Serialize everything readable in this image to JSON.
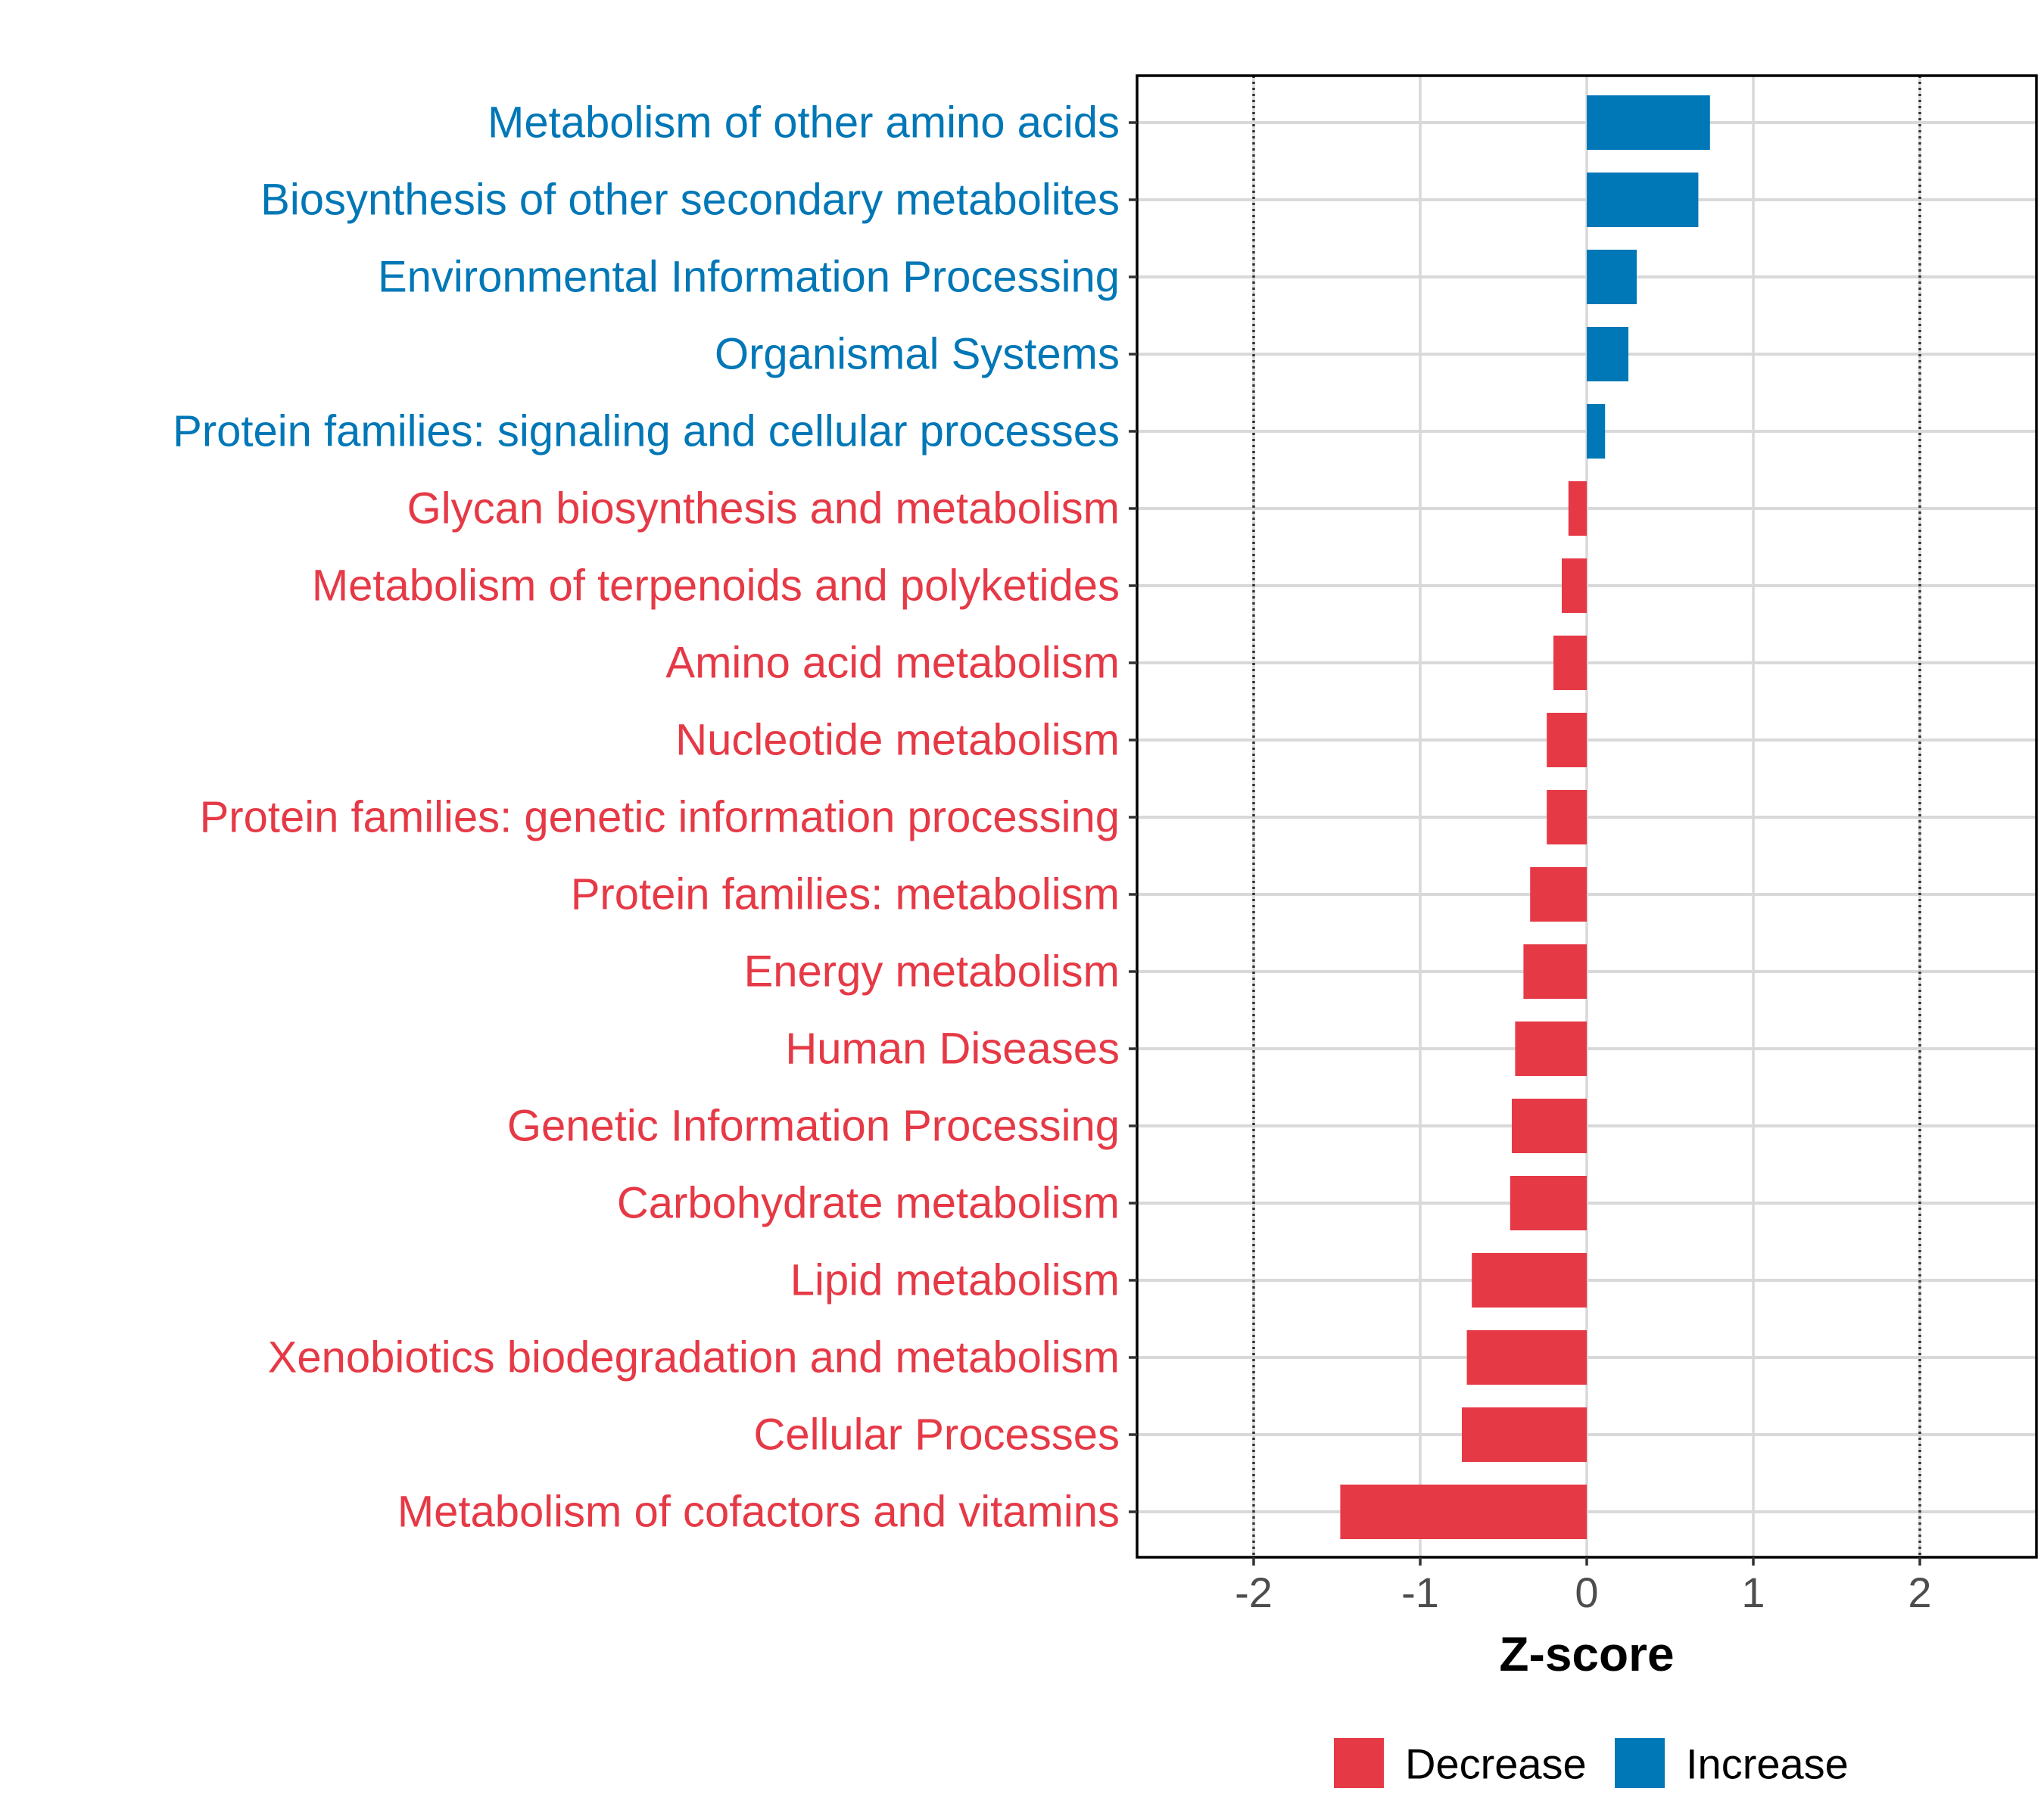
{
  "chart_data": {
    "type": "bar",
    "orientation": "horizontal",
    "title": "",
    "xlabel": "Z-score",
    "ylabel": "",
    "xlim": [
      -2.7,
      2.7
    ],
    "xticks": [
      -2,
      -1,
      0,
      1,
      2
    ],
    "tick_labels": [
      "-2",
      "-1",
      "0",
      "1",
      "2"
    ],
    "reference_lines": [
      -2,
      2
    ],
    "grid": true,
    "legend_position": "bottom",
    "colors": {
      "Decrease": "#E63946",
      "Increase": "#0077B6"
    },
    "legend": [
      {
        "name": "Decrease",
        "color": "#E63946"
      },
      {
        "name": "Increase",
        "color": "#0077B6"
      }
    ],
    "categories": [
      "Metabolism of other amino acids",
      "Biosynthesis of other secondary metabolites",
      "Environmental Information Processing",
      "Organismal Systems",
      "Protein families: signaling and cellular processes",
      "Glycan biosynthesis and metabolism",
      "Metabolism of terpenoids and polyketides",
      "Amino acid metabolism",
      "Nucleotide metabolism",
      "Protein families: genetic information processing",
      "Protein families: metabolism",
      "Energy metabolism",
      "Human Diseases",
      "Genetic Information Processing",
      "Carbohydrate metabolism",
      "Lipid metabolism",
      "Xenobiotics biodegradation and metabolism",
      "Cellular Processes",
      "Metabolism of cofactors and vitamins"
    ],
    "values": [
      0.74,
      0.67,
      0.3,
      0.25,
      0.11,
      -0.11,
      -0.15,
      -0.2,
      -0.24,
      -0.24,
      -0.34,
      -0.38,
      -0.43,
      -0.45,
      -0.46,
      -0.69,
      -0.72,
      -0.75,
      -1.48
    ],
    "groups": [
      "Increase",
      "Increase",
      "Increase",
      "Increase",
      "Increase",
      "Decrease",
      "Decrease",
      "Decrease",
      "Decrease",
      "Decrease",
      "Decrease",
      "Decrease",
      "Decrease",
      "Decrease",
      "Decrease",
      "Decrease",
      "Decrease",
      "Decrease",
      "Decrease"
    ]
  }
}
